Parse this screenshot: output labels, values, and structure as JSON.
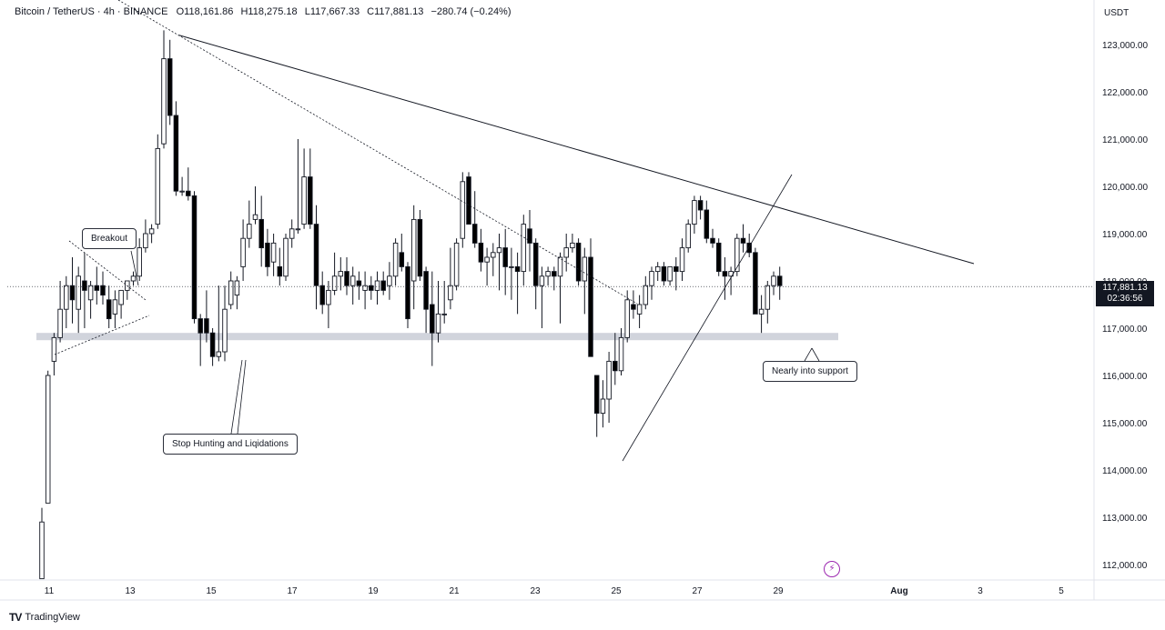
{
  "header": {
    "symbol": "Bitcoin / TetherUS · 4h · BINANCE",
    "open_label": "O",
    "open": "118,161.86",
    "high_label": "H",
    "high": "118,275.18",
    "low_label": "L",
    "low": "117,667.33",
    "close_label": "C",
    "close": "117,881.13",
    "change": "−280.74 (−0.24%)"
  },
  "axis_unit": "USDT",
  "last_price": {
    "value": "117,881.13",
    "countdown": "02:36:56"
  },
  "callouts": {
    "breakout": "Breakout",
    "stop_hunting": "Stop Hunting and Liqidations",
    "support": "Nearly into support"
  },
  "footer": {
    "brand": "TradingView",
    "logo_mark": "TV"
  },
  "icons": {
    "alert": "lightning-bolt-icon",
    "logo": "tradingview-logo-icon"
  },
  "colors": {
    "candle_up": "#ffffff",
    "candle_down": "#000000",
    "support_zone": "#d1d4dc",
    "price_tag": "#131722",
    "alert": "#9c27b0"
  },
  "chart_data": {
    "type": "candlestick",
    "interval": "4h",
    "yticks": [
      "112,000.00",
      "113,000.00",
      "114,000.00",
      "115,000.00",
      "116,000.00",
      "117,000.00",
      "118,000.00",
      "119,000.00",
      "120,000.00",
      "121,000.00",
      "122,000.00",
      "123,000.00"
    ],
    "ylim": [
      111700,
      124000
    ],
    "x_tick_labels": [
      "11",
      "13",
      "15",
      "17",
      "19",
      "21",
      "23",
      "25",
      "27",
      "29",
      "Aug",
      "3",
      "5"
    ],
    "last_close": 117881.13,
    "support_zone": [
      116750,
      116900
    ],
    "trendline_resistance": {
      "from": [
        14.2,
        123200
      ],
      "to": [
        29.5,
        118400
      ]
    },
    "candles_approx": [
      {
        "o": 111700,
        "h": 113200,
        "l": 111700,
        "c": 112900
      },
      {
        "o": 113300,
        "h": 116100,
        "l": 113300,
        "c": 116000
      },
      {
        "o": 116300,
        "h": 116900,
        "l": 116000,
        "c": 116800
      },
      {
        "o": 116800,
        "h": 118000,
        "l": 116700,
        "c": 117400
      },
      {
        "o": 117400,
        "h": 118100,
        "l": 117000,
        "c": 117900
      },
      {
        "o": 117900,
        "h": 118500,
        "l": 117100,
        "c": 117600
      },
      {
        "o": 117400,
        "h": 118300,
        "l": 116900,
        "c": 118100
      },
      {
        "o": 118000,
        "h": 118600,
        "l": 117000,
        "c": 117800
      },
      {
        "o": 117600,
        "h": 118000,
        "l": 117200,
        "c": 117900
      },
      {
        "o": 117900,
        "h": 118300,
        "l": 117500,
        "c": 117800
      },
      {
        "o": 117900,
        "h": 118200,
        "l": 117500,
        "c": 117700
      },
      {
        "o": 117600,
        "h": 117900,
        "l": 117000,
        "c": 117200
      },
      {
        "o": 117300,
        "h": 117800,
        "l": 117000,
        "c": 117600
      },
      {
        "o": 117500,
        "h": 117800,
        "l": 117200,
        "c": 117800
      },
      {
        "o": 117800,
        "h": 118000,
        "l": 117600,
        "c": 118000
      },
      {
        "o": 118000,
        "h": 118200,
        "l": 117900,
        "c": 118100
      },
      {
        "o": 118100,
        "h": 118900,
        "l": 118000,
        "c": 118700
      },
      {
        "o": 118700,
        "h": 119300,
        "l": 118600,
        "c": 119000
      },
      {
        "o": 119000,
        "h": 119200,
        "l": 118800,
        "c": 119100
      },
      {
        "o": 119200,
        "h": 121100,
        "l": 119100,
        "c": 120800
      },
      {
        "o": 120900,
        "h": 123300,
        "l": 120800,
        "c": 122700
      },
      {
        "o": 122700,
        "h": 123100,
        "l": 121300,
        "c": 121500
      },
      {
        "o": 121500,
        "h": 121800,
        "l": 119800,
        "c": 119900
      },
      {
        "o": 119900,
        "h": 120200,
        "l": 119800,
        "c": 119900
      },
      {
        "o": 119900,
        "h": 120400,
        "l": 119700,
        "c": 119800
      },
      {
        "o": 119800,
        "h": 119900,
        "l": 117100,
        "c": 117200
      },
      {
        "o": 117200,
        "h": 117300,
        "l": 116200,
        "c": 116900
      },
      {
        "o": 117200,
        "h": 117800,
        "l": 116700,
        "c": 116900
      },
      {
        "o": 116900,
        "h": 117000,
        "l": 116200,
        "c": 116400
      },
      {
        "o": 116400,
        "h": 117900,
        "l": 116300,
        "c": 116500
      },
      {
        "o": 116500,
        "h": 117900,
        "l": 116300,
        "c": 117400
      },
      {
        "o": 117500,
        "h": 118200,
        "l": 117400,
        "c": 118000
      },
      {
        "o": 117700,
        "h": 118100,
        "l": 117400,
        "c": 118000
      },
      {
        "o": 118300,
        "h": 119300,
        "l": 118000,
        "c": 118900
      },
      {
        "o": 118900,
        "h": 119700,
        "l": 118700,
        "c": 119200
      },
      {
        "o": 119300,
        "h": 120000,
        "l": 119200,
        "c": 119400
      },
      {
        "o": 119300,
        "h": 119800,
        "l": 118300,
        "c": 118700
      },
      {
        "o": 118800,
        "h": 119100,
        "l": 118100,
        "c": 118300
      },
      {
        "o": 118400,
        "h": 119000,
        "l": 118100,
        "c": 118800
      },
      {
        "o": 118300,
        "h": 118700,
        "l": 117900,
        "c": 118100
      },
      {
        "o": 118100,
        "h": 119000,
        "l": 118000,
        "c": 118900
      },
      {
        "o": 118900,
        "h": 119300,
        "l": 118700,
        "c": 119100
      },
      {
        "o": 119100,
        "h": 121000,
        "l": 119000,
        "c": 119100
      },
      {
        "o": 119200,
        "h": 120800,
        "l": 119100,
        "c": 120200
      },
      {
        "o": 120200,
        "h": 120800,
        "l": 119100,
        "c": 119200
      },
      {
        "o": 119200,
        "h": 119600,
        "l": 117400,
        "c": 117900
      },
      {
        "o": 117900,
        "h": 118200,
        "l": 117300,
        "c": 117500
      },
      {
        "o": 117500,
        "h": 118000,
        "l": 117000,
        "c": 117800
      },
      {
        "o": 117800,
        "h": 118600,
        "l": 117700,
        "c": 118100
      },
      {
        "o": 118100,
        "h": 118500,
        "l": 117800,
        "c": 118200
      },
      {
        "o": 118200,
        "h": 118500,
        "l": 117700,
        "c": 117900
      },
      {
        "o": 117900,
        "h": 118300,
        "l": 117500,
        "c": 118100
      },
      {
        "o": 118000,
        "h": 118200,
        "l": 117600,
        "c": 117900
      },
      {
        "o": 117800,
        "h": 118200,
        "l": 117400,
        "c": 117900
      },
      {
        "o": 117900,
        "h": 118100,
        "l": 117600,
        "c": 117800
      },
      {
        "o": 117800,
        "h": 118200,
        "l": 117500,
        "c": 118000
      },
      {
        "o": 118000,
        "h": 118200,
        "l": 117700,
        "c": 117800
      },
      {
        "o": 117900,
        "h": 118400,
        "l": 117600,
        "c": 118100
      },
      {
        "o": 118100,
        "h": 118900,
        "l": 117900,
        "c": 118800
      },
      {
        "o": 118600,
        "h": 119000,
        "l": 118200,
        "c": 118300
      },
      {
        "o": 118300,
        "h": 118400,
        "l": 117000,
        "c": 117200
      },
      {
        "o": 118000,
        "h": 119600,
        "l": 117400,
        "c": 119300
      },
      {
        "o": 119300,
        "h": 119500,
        "l": 118000,
        "c": 118100
      },
      {
        "o": 118200,
        "h": 118300,
        "l": 116900,
        "c": 117400
      },
      {
        "o": 117500,
        "h": 118200,
        "l": 116200,
        "c": 116900
      },
      {
        "o": 116900,
        "h": 118000,
        "l": 116700,
        "c": 117300
      },
      {
        "o": 117300,
        "h": 118000,
        "l": 117100,
        "c": 117300
      },
      {
        "o": 117600,
        "h": 118700,
        "l": 117400,
        "c": 117900
      },
      {
        "o": 117900,
        "h": 118900,
        "l": 117800,
        "c": 118800
      },
      {
        "o": 118900,
        "h": 120300,
        "l": 118700,
        "c": 120100
      },
      {
        "o": 120200,
        "h": 120300,
        "l": 119200,
        "c": 119200
      },
      {
        "o": 119200,
        "h": 119900,
        "l": 118700,
        "c": 118800
      },
      {
        "o": 118800,
        "h": 119100,
        "l": 118200,
        "c": 118400
      },
      {
        "o": 118400,
        "h": 118700,
        "l": 117900,
        "c": 118500
      },
      {
        "o": 118500,
        "h": 118800,
        "l": 118100,
        "c": 118600
      },
      {
        "o": 118600,
        "h": 119000,
        "l": 117800,
        "c": 118700
      },
      {
        "o": 118700,
        "h": 119100,
        "l": 117700,
        "c": 118300
      },
      {
        "o": 118300,
        "h": 118700,
        "l": 117600,
        "c": 118300
      },
      {
        "o": 118300,
        "h": 118600,
        "l": 117300,
        "c": 118200
      },
      {
        "o": 118200,
        "h": 119400,
        "l": 117900,
        "c": 119200
      },
      {
        "o": 119100,
        "h": 119500,
        "l": 118200,
        "c": 118800
      },
      {
        "o": 118800,
        "h": 118900,
        "l": 117400,
        "c": 117900
      },
      {
        "o": 117900,
        "h": 118300,
        "l": 117000,
        "c": 118100
      },
      {
        "o": 118100,
        "h": 118300,
        "l": 117900,
        "c": 118200
      },
      {
        "o": 118200,
        "h": 118300,
        "l": 117800,
        "c": 118100
      },
      {
        "o": 118100,
        "h": 118600,
        "l": 117100,
        "c": 118500
      },
      {
        "o": 118500,
        "h": 119000,
        "l": 118200,
        "c": 118700
      },
      {
        "o": 118700,
        "h": 119000,
        "l": 118600,
        "c": 118800
      },
      {
        "o": 118800,
        "h": 118900,
        "l": 117900,
        "c": 118000
      },
      {
        "o": 118000,
        "h": 118700,
        "l": 117300,
        "c": 118500
      },
      {
        "o": 118500,
        "h": 118900,
        "l": 116500,
        "c": 116400
      },
      {
        "o": 116000,
        "h": 116000,
        "l": 114700,
        "c": 115200
      },
      {
        "o": 115200,
        "h": 115900,
        "l": 114900,
        "c": 115500
      },
      {
        "o": 115500,
        "h": 116500,
        "l": 115000,
        "c": 116300
      },
      {
        "o": 116300,
        "h": 116900,
        "l": 115800,
        "c": 116100
      },
      {
        "o": 116100,
        "h": 117000,
        "l": 116000,
        "c": 116800
      },
      {
        "o": 116800,
        "h": 117800,
        "l": 116700,
        "c": 117600
      },
      {
        "o": 117500,
        "h": 117800,
        "l": 117200,
        "c": 117400
      },
      {
        "o": 117300,
        "h": 117700,
        "l": 117000,
        "c": 117500
      },
      {
        "o": 117500,
        "h": 118100,
        "l": 117400,
        "c": 117900
      },
      {
        "o": 117900,
        "h": 118300,
        "l": 117600,
        "c": 118200
      },
      {
        "o": 118200,
        "h": 118400,
        "l": 118000,
        "c": 118300
      },
      {
        "o": 118300,
        "h": 118400,
        "l": 117900,
        "c": 118000
      },
      {
        "o": 118000,
        "h": 118300,
        "l": 117900,
        "c": 118300
      },
      {
        "o": 118300,
        "h": 118500,
        "l": 117800,
        "c": 118200
      },
      {
        "o": 118200,
        "h": 118900,
        "l": 118000,
        "c": 118700
      },
      {
        "o": 118700,
        "h": 119300,
        "l": 118600,
        "c": 119200
      },
      {
        "o": 119200,
        "h": 119800,
        "l": 119000,
        "c": 119700
      },
      {
        "o": 119700,
        "h": 119800,
        "l": 119300,
        "c": 119500
      },
      {
        "o": 119500,
        "h": 119700,
        "l": 118800,
        "c": 118900
      },
      {
        "o": 118900,
        "h": 119100,
        "l": 118700,
        "c": 118800
      },
      {
        "o": 118800,
        "h": 118900,
        "l": 118100,
        "c": 118200
      },
      {
        "o": 118200,
        "h": 118500,
        "l": 117600,
        "c": 118100
      },
      {
        "o": 118100,
        "h": 118300,
        "l": 117700,
        "c": 118200
      },
      {
        "o": 118200,
        "h": 119000,
        "l": 118100,
        "c": 118900
      },
      {
        "o": 118900,
        "h": 119200,
        "l": 118600,
        "c": 118800
      },
      {
        "o": 118800,
        "h": 119000,
        "l": 118500,
        "c": 118600
      },
      {
        "o": 118600,
        "h": 118700,
        "l": 117300,
        "c": 117300
      },
      {
        "o": 117300,
        "h": 117700,
        "l": 116900,
        "c": 117400
      },
      {
        "o": 117400,
        "h": 118000,
        "l": 117100,
        "c": 117900
      },
      {
        "o": 117900,
        "h": 118200,
        "l": 117700,
        "c": 118100
      },
      {
        "o": 118100,
        "h": 118300,
        "l": 117600,
        "c": 117900
      }
    ]
  }
}
